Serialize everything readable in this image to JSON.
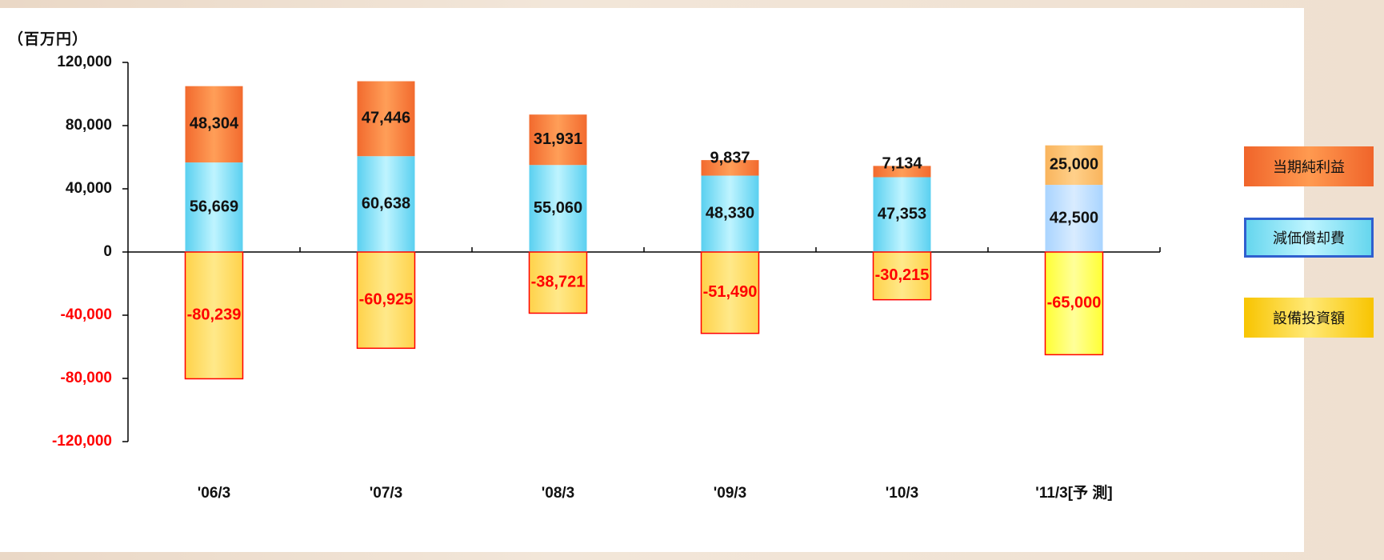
{
  "unit_label": "（百万円）",
  "legend": {
    "profit": "当期純利益",
    "depreciation": "減価償却費",
    "capex": "設備投資額"
  },
  "colors": {
    "profit": "#f26a2e",
    "profit_forecast": "#f9b45c",
    "depreciation": "#5ad0f0",
    "depreciation_forecast": "#a9d4ff",
    "capex": "#ffd24a",
    "capex_forecast": "#ffff33",
    "capex_border": "#ff0000",
    "negative_text": "#ff0000"
  },
  "chart_data": {
    "type": "bar",
    "stacked": true,
    "categories": [
      "'06/3",
      "'07/3",
      "'08/3",
      "'09/3",
      "'10/3",
      "'11/3[予 測]"
    ],
    "series": [
      {
        "name": "当期純利益",
        "values": [
          48304,
          47446,
          31931,
          9837,
          7134,
          25000
        ]
      },
      {
        "name": "減価償却費",
        "values": [
          56669,
          60638,
          55060,
          48330,
          47353,
          42500
        ]
      },
      {
        "name": "設備投資額",
        "values": [
          -80239,
          -60925,
          -38721,
          -51490,
          -30215,
          -65000
        ]
      }
    ],
    "data_labels": {
      "profit": [
        "48,304",
        "47,446",
        "31,931",
        "9,837",
        "7,134",
        "25,000"
      ],
      "depreciation": [
        "56,669",
        "60,638",
        "55,060",
        "48,330",
        "47,353",
        "42,500"
      ],
      "capex": [
        "-80,239",
        "-60,925",
        "-38,721",
        "-51,490",
        "-30,215",
        "-65,000"
      ]
    },
    "ylim": [
      -120000,
      120000
    ],
    "yticks": [
      120000,
      80000,
      40000,
      0,
      -40000,
      -80000,
      -120000
    ],
    "ytick_labels": [
      "120,000",
      "80,000",
      "40,000",
      "0",
      "-40,000",
      "-80,000",
      "-120,000"
    ],
    "grid": false,
    "legend_position": "right"
  }
}
